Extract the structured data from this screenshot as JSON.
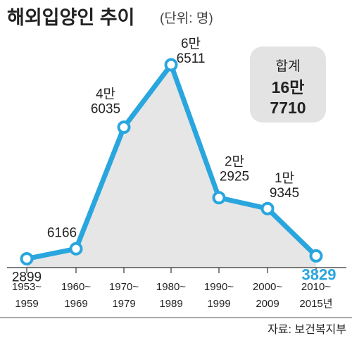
{
  "header": {
    "title": "해외입양인 추이",
    "unit": "(단위: 명)"
  },
  "total_box": {
    "label": "합계",
    "value_line1": "16만",
    "value_line2": "7710"
  },
  "source": "자료: 보건복지부",
  "colors": {
    "line": "#2aa6de",
    "area": "#e6e6e6",
    "total_box": "#e3e3e3",
    "highlight_label": "#2aa6de"
  },
  "chart_data": {
    "type": "line",
    "categories": [
      [
        "1953~",
        "1959"
      ],
      [
        "1960~",
        "1969"
      ],
      [
        "1970~",
        "1979"
      ],
      [
        "1980~",
        "1989"
      ],
      [
        "1990~",
        "1999"
      ],
      [
        "2000~",
        "2009"
      ],
      [
        "2010~",
        "2015년"
      ]
    ],
    "values": [
      2899,
      6166,
      46035,
      66511,
      22925,
      19345,
      3829
    ],
    "data_labels": [
      [
        "2899"
      ],
      [
        "6166"
      ],
      [
        "4만",
        "6035"
      ],
      [
        "6만",
        "6511"
      ],
      [
        "2만",
        "2925"
      ],
      [
        "1만",
        "9345"
      ],
      [
        "3829"
      ]
    ],
    "highlight_last": true,
    "area_fill": true,
    "ylim": [
      0,
      70000
    ],
    "grid": false,
    "legend": "none"
  }
}
